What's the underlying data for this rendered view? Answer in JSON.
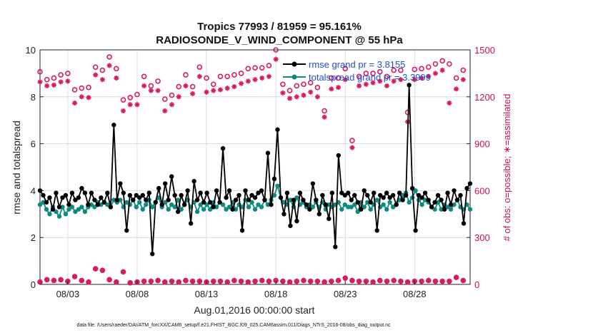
{
  "chart_data": {
    "type": "line",
    "title": "Tropics 77993 / 81959 = 95.161%",
    "subtitle": "RADIOSONDE_V_WIND_COMPONENT @ 55 hPa",
    "xlabel": "Aug.01,2016 00:00:00 start",
    "ylabel": "rmse and totalspread",
    "ylabel_right": "# of obs: o=possible; ∗=assimilated",
    "footnote": "data file: /Users/raeder/DAI/ATM_forcXX/CAM6_setup/f.e21.FHIST_BGC.f09_025.CAM6assim.011/Diags_NTrS_2016-08/obs_diag_output.nc",
    "x_start_day": 1,
    "x_end_day": 32,
    "xticks": [
      {
        "day": 3,
        "label": "08/03"
      },
      {
        "day": 8,
        "label": "08/08"
      },
      {
        "day": 13,
        "label": "08/13"
      },
      {
        "day": 18,
        "label": "08/18"
      },
      {
        "day": 23,
        "label": "08/23"
      },
      {
        "day": 28,
        "label": "08/28"
      }
    ],
    "ylim": [
      0,
      10
    ],
    "yticks": [
      "0",
      "2",
      "4",
      "6",
      "8",
      "10"
    ],
    "ylim_right": [
      0,
      1500
    ],
    "yticks_right": [
      "0",
      "300",
      "600",
      "900",
      "1200",
      "1500"
    ],
    "legend": {
      "placement": "top-right",
      "entries": [
        "rmse grand pr = 3.8155",
        "totalspread grand pr = 3.3999"
      ]
    },
    "colors": {
      "rmse": "#000000",
      "totalspread": "#0f8a83",
      "obs": "#d81b60",
      "legend_text": "#1d4fd8",
      "right_axis": "#cc1155"
    },
    "series": [
      {
        "name": "rmse",
        "values": [
          4.0,
          3.8,
          3.5,
          3.7,
          3.2,
          3.9,
          3.3,
          3.7,
          3.8,
          3.4,
          3.9,
          3.6,
          3.7,
          4.1,
          3.9,
          3.4,
          3.9,
          3.6,
          3.4,
          3.7,
          3.5,
          3.9,
          3.3,
          6.8,
          3.6,
          4.3,
          3.9,
          2.3,
          3.8,
          3.6,
          3.8,
          3.7,
          3.8,
          3.6,
          3.9,
          1.3,
          3.5,
          4.1,
          3.4,
          4.3,
          3.6,
          4.6,
          3.8,
          3.1,
          3.8,
          3.4,
          4.0,
          2.6,
          4.4,
          3.6,
          3.9,
          3.5,
          3.9,
          3.5,
          3.3,
          4.0,
          3.5,
          5.8,
          3.7,
          4.0,
          3.2,
          3.6,
          3.8,
          2.3,
          4.0,
          3.6,
          3.8,
          3.7,
          3.9,
          4.0,
          3.6,
          5.6,
          3.4,
          4.5,
          6.6,
          3.7,
          3.0,
          3.9,
          2.5,
          3.6,
          2.7,
          3.9,
          3.6,
          3.4,
          3.2,
          4.3,
          3.6,
          3.0,
          3.8,
          3.4,
          2.8,
          3.9,
          1.6,
          5.5,
          3.9,
          3.8,
          3.9,
          3.6,
          3.8,
          3.5,
          3.2,
          4.0,
          3.8,
          3.5,
          3.9,
          2.3,
          3.8,
          3.7,
          3.9,
          3.7,
          3.8,
          3.4,
          3.9,
          3.6,
          3.8,
          8.5,
          4.1,
          2.3,
          3.8,
          3.7,
          3.9,
          3.6,
          3.3,
          3.5,
          3.8,
          3.6,
          3.2,
          3.9,
          3.4,
          4.0,
          3.6,
          3.8,
          2.6,
          4.1,
          4.3
        ]
      },
      {
        "name": "totalspread",
        "values": [
          3.4,
          3.5,
          3.2,
          3.0,
          3.3,
          3.1,
          2.9,
          3.3,
          3.0,
          3.2,
          3.3,
          3.1,
          3.2,
          3.3,
          3.1,
          3.3,
          3.4,
          3.3,
          3.5,
          3.4,
          3.5,
          3.4,
          3.3,
          3.6,
          3.5,
          3.6,
          3.3,
          3.5,
          3.4,
          3.6,
          3.3,
          3.5,
          3.2,
          3.4,
          3.6,
          3.3,
          3.5,
          3.7,
          3.3,
          3.5,
          3.2,
          3.4,
          3.3,
          3.6,
          3.2,
          3.4,
          3.6,
          3.3,
          3.5,
          3.1,
          3.4,
          3.2,
          3.4,
          3.2,
          3.5,
          3.3,
          3.5,
          3.4,
          3.2,
          3.3,
          3.5,
          3.2,
          3.4,
          3.3,
          3.6,
          3.3,
          3.5,
          3.2,
          3.4,
          3.3,
          3.6,
          3.4,
          3.6,
          3.8,
          4.2,
          3.7,
          3.5,
          3.4,
          3.6,
          3.3,
          3.7,
          3.4,
          3.5,
          3.3,
          3.4,
          3.3,
          3.5,
          3.3,
          3.5,
          3.2,
          3.4,
          3.3,
          3.4,
          3.5,
          3.2,
          3.4,
          3.3,
          3.3,
          3.4,
          3.1,
          3.5,
          3.3,
          3.5,
          3.2,
          3.4,
          3.6,
          3.3,
          3.4,
          3.2,
          3.5,
          3.3,
          3.4,
          3.6,
          3.8,
          3.9,
          3.5,
          3.7,
          4.0,
          3.6,
          3.4,
          3.6,
          3.5,
          3.3,
          3.2,
          3.5,
          3.2,
          3.4,
          3.3,
          3.2,
          3.4,
          3.6,
          3.3,
          3.2,
          3.4,
          3.2
        ]
      }
    ],
    "obs_possible": [
      {
        "day": 1.0,
        "value": 1360
      },
      {
        "day": 1.5,
        "value": 1310
      },
      {
        "day": 2.0,
        "value": 1320
      },
      {
        "day": 2.5,
        "value": 1340
      },
      {
        "day": 3.0,
        "value": 1350
      },
      {
        "day": 3.5,
        "value": 1245
      },
      {
        "day": 4.0,
        "value": 1255
      },
      {
        "day": 4.5,
        "value": 1260
      },
      {
        "day": 5.0,
        "value": 1390
      },
      {
        "day": 5.5,
        "value": 1370
      },
      {
        "day": 6.0,
        "value": 1455
      },
      {
        "day": 6.5,
        "value": 1380
      },
      {
        "day": 7.0,
        "value": 1180
      },
      {
        "day": 7.5,
        "value": 1195
      },
      {
        "day": 8.0,
        "value": 1215
      },
      {
        "day": 8.5,
        "value": 1330
      },
      {
        "day": 9.0,
        "value": 1270
      },
      {
        "day": 9.5,
        "value": 1300
      },
      {
        "day": 10.0,
        "value": 1185
      },
      {
        "day": 10.5,
        "value": 1210
      },
      {
        "day": 11.0,
        "value": 1265
      },
      {
        "day": 11.5,
        "value": 1340
      },
      {
        "day": 12.0,
        "value": 1265
      },
      {
        "day": 12.5,
        "value": 1390
      },
      {
        "day": 13.0,
        "value": 1320
      },
      {
        "day": 13.5,
        "value": 1280
      },
      {
        "day": 14.0,
        "value": 1330
      },
      {
        "day": 14.5,
        "value": 1330
      },
      {
        "day": 15.0,
        "value": 1340
      },
      {
        "day": 15.5,
        "value": 1350
      },
      {
        "day": 16.0,
        "value": 1380
      },
      {
        "day": 16.5,
        "value": 1385
      },
      {
        "day": 17.0,
        "value": 1385
      },
      {
        "day": 17.5,
        "value": 1400
      },
      {
        "day": 18.0,
        "value": 1500
      },
      {
        "day": 18.5,
        "value": 1280
      },
      {
        "day": 19.0,
        "value": 1240
      },
      {
        "day": 19.5,
        "value": 1270
      },
      {
        "day": 20.0,
        "value": 1280
      },
      {
        "day": 20.5,
        "value": 1290
      },
      {
        "day": 21.0,
        "value": 1260
      },
      {
        "day": 21.5,
        "value": 1110
      },
      {
        "day": 22.0,
        "value": 1320
      },
      {
        "day": 22.5,
        "value": 1320
      },
      {
        "day": 23.0,
        "value": 1380
      },
      {
        "day": 23.5,
        "value": 920
      },
      {
        "day": 24.0,
        "value": 1330
      },
      {
        "day": 24.5,
        "value": 1350
      },
      {
        "day": 25.0,
        "value": 1350
      },
      {
        "day": 25.5,
        "value": 1360
      },
      {
        "day": 26.0,
        "value": 1330
      },
      {
        "day": 26.5,
        "value": 1370
      },
      {
        "day": 27.0,
        "value": 1370
      },
      {
        "day": 27.5,
        "value": 1100
      },
      {
        "day": 28.0,
        "value": 1375
      },
      {
        "day": 28.5,
        "value": 1380
      },
      {
        "day": 29.0,
        "value": 1390
      },
      {
        "day": 29.5,
        "value": 1410
      },
      {
        "day": 30.0,
        "value": 1430
      },
      {
        "day": 30.5,
        "value": 1410
      },
      {
        "day": 31.0,
        "value": 1320
      },
      {
        "day": 31.5,
        "value": 1370
      }
    ],
    "obs_assimilated": [
      {
        "day": 1.0,
        "value": 1295
      },
      {
        "day": 1.5,
        "value": 1270
      },
      {
        "day": 2.0,
        "value": 1275
      },
      {
        "day": 2.5,
        "value": 1295
      },
      {
        "day": 3.0,
        "value": 1300
      },
      {
        "day": 3.5,
        "value": 1160
      },
      {
        "day": 4.0,
        "value": 1200
      },
      {
        "day": 4.5,
        "value": 1195
      },
      {
        "day": 5.0,
        "value": 1340
      },
      {
        "day": 5.5,
        "value": 1310
      },
      {
        "day": 6.0,
        "value": 1400
      },
      {
        "day": 6.5,
        "value": 1320
      },
      {
        "day": 7.0,
        "value": 1110
      },
      {
        "day": 7.5,
        "value": 1150
      },
      {
        "day": 8.0,
        "value": 1150
      },
      {
        "day": 8.5,
        "value": 1270
      },
      {
        "day": 9.0,
        "value": 1240
      },
      {
        "day": 9.5,
        "value": 1240
      },
      {
        "day": 10.0,
        "value": 1110
      },
      {
        "day": 10.5,
        "value": 1150
      },
      {
        "day": 11.0,
        "value": 1200
      },
      {
        "day": 11.5,
        "value": 1270
      },
      {
        "day": 12.0,
        "value": 1220
      },
      {
        "day": 12.5,
        "value": 1330
      },
      {
        "day": 13.0,
        "value": 1230
      },
      {
        "day": 13.5,
        "value": 1240
      },
      {
        "day": 14.0,
        "value": 1245
      },
      {
        "day": 14.5,
        "value": 1255
      },
      {
        "day": 15.0,
        "value": 1265
      },
      {
        "day": 15.5,
        "value": 1285
      },
      {
        "day": 16.0,
        "value": 1300
      },
      {
        "day": 16.5,
        "value": 1310
      },
      {
        "day": 17.0,
        "value": 1320
      },
      {
        "day": 17.5,
        "value": 1330
      },
      {
        "day": 18.0,
        "value": 1440
      },
      {
        "day": 18.5,
        "value": 1225
      },
      {
        "day": 19.0,
        "value": 1190
      },
      {
        "day": 19.5,
        "value": 1200
      },
      {
        "day": 20.0,
        "value": 1210
      },
      {
        "day": 20.5,
        "value": 1230
      },
      {
        "day": 21.0,
        "value": 1200
      },
      {
        "day": 21.5,
        "value": 1070
      },
      {
        "day": 22.0,
        "value": 1250
      },
      {
        "day": 22.5,
        "value": 1260
      },
      {
        "day": 23.0,
        "value": 1310
      },
      {
        "day": 23.5,
        "value": 875
      },
      {
        "day": 24.0,
        "value": 1270
      },
      {
        "day": 24.5,
        "value": 1280
      },
      {
        "day": 25.0,
        "value": 1290
      },
      {
        "day": 25.5,
        "value": 1300
      },
      {
        "day": 26.0,
        "value": 1270
      },
      {
        "day": 26.5,
        "value": 1300
      },
      {
        "day": 27.0,
        "value": 1310
      },
      {
        "day": 27.5,
        "value": 1040
      },
      {
        "day": 28.0,
        "value": 1310
      },
      {
        "day": 28.5,
        "value": 1320
      },
      {
        "day": 29.0,
        "value": 1330
      },
      {
        "day": 29.5,
        "value": 1350
      },
      {
        "day": 30.0,
        "value": 1370
      },
      {
        "day": 30.5,
        "value": 1160
      },
      {
        "day": 31.0,
        "value": 1250
      },
      {
        "day": 31.5,
        "value": 1310
      }
    ],
    "obs_bottom_assimilated": [
      {
        "day": 1.0,
        "value": 15
      },
      {
        "day": 1.5,
        "value": 30
      },
      {
        "day": 2.0,
        "value": 25
      },
      {
        "day": 2.5,
        "value": 30
      },
      {
        "day": 3.0,
        "value": 20
      },
      {
        "day": 3.5,
        "value": 50
      },
      {
        "day": 4.0,
        "value": 25
      },
      {
        "day": 4.5,
        "value": 15
      },
      {
        "day": 5.0,
        "value": 100
      },
      {
        "day": 5.5,
        "value": 90
      },
      {
        "day": 6.0,
        "value": 30
      },
      {
        "day": 6.5,
        "value": 15
      },
      {
        "day": 7.0,
        "value": 80
      },
      {
        "day": 7.5,
        "value": 10
      },
      {
        "day": 8.0,
        "value": 15
      },
      {
        "day": 8.5,
        "value": 20
      },
      {
        "day": 9.0,
        "value": 20
      },
      {
        "day": 9.5,
        "value": 25
      },
      {
        "day": 10.0,
        "value": 15
      },
      {
        "day": 10.5,
        "value": 20
      },
      {
        "day": 11.0,
        "value": 15
      },
      {
        "day": 11.5,
        "value": 25
      },
      {
        "day": 12.0,
        "value": 20
      },
      {
        "day": 12.5,
        "value": 20
      },
      {
        "day": 13.0,
        "value": 15
      },
      {
        "day": 13.5,
        "value": 20
      },
      {
        "day": 14.0,
        "value": 20
      },
      {
        "day": 14.5,
        "value": 15
      },
      {
        "day": 15.0,
        "value": 25
      },
      {
        "day": 15.5,
        "value": 20
      },
      {
        "day": 16.0,
        "value": 15
      },
      {
        "day": 16.5,
        "value": 20
      },
      {
        "day": 17.0,
        "value": 25
      },
      {
        "day": 17.5,
        "value": 20
      },
      {
        "day": 18.0,
        "value": 25
      },
      {
        "day": 18.5,
        "value": 20
      },
      {
        "day": 19.0,
        "value": 15
      },
      {
        "day": 19.5,
        "value": 20
      },
      {
        "day": 20.0,
        "value": 25
      },
      {
        "day": 20.5,
        "value": 20
      },
      {
        "day": 21.0,
        "value": 20
      },
      {
        "day": 21.5,
        "value": 15
      },
      {
        "day": 22.0,
        "value": 20
      },
      {
        "day": 22.5,
        "value": 25
      },
      {
        "day": 23.0,
        "value": 40
      },
      {
        "day": 23.5,
        "value": 25
      },
      {
        "day": 24.0,
        "value": 20
      },
      {
        "day": 24.5,
        "value": 20
      },
      {
        "day": 25.0,
        "value": 15
      },
      {
        "day": 25.5,
        "value": 25
      },
      {
        "day": 26.0,
        "value": 20
      },
      {
        "day": 26.5,
        "value": 25
      },
      {
        "day": 27.0,
        "value": 20
      },
      {
        "day": 27.5,
        "value": 15
      },
      {
        "day": 28.0,
        "value": 20
      },
      {
        "day": 28.5,
        "value": 20
      },
      {
        "day": 29.0,
        "value": 25
      },
      {
        "day": 29.5,
        "value": 20
      },
      {
        "day": 30.0,
        "value": 20
      },
      {
        "day": 30.5,
        "value": 20
      },
      {
        "day": 31.0,
        "value": 45
      },
      {
        "day": 31.5,
        "value": 25
      }
    ]
  }
}
